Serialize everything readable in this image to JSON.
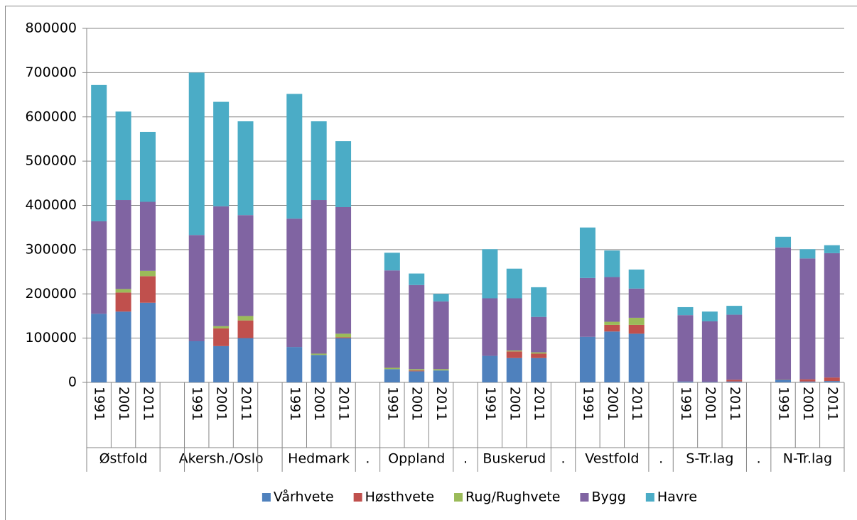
{
  "chart_data": {
    "type": "stacked_bar",
    "categories": [
      "1991",
      "2001",
      "2011",
      null,
      "1991",
      "2001",
      "2011",
      null,
      "1991",
      "2001",
      "2011",
      null,
      "1991",
      "2001",
      "2011",
      null,
      "1991",
      "2001",
      "2011",
      null,
      "1991",
      "2001",
      "2011",
      null,
      "1991",
      "2001",
      "2011",
      null,
      "1991",
      "2001",
      "2011"
    ],
    "groups": [
      "Østfold",
      null,
      "Akersh./Oslo",
      null,
      "Hedmark",
      ".",
      "Oppland",
      ".",
      "Buskerud",
      ".",
      "Vestfold",
      ".",
      "S-Tr.lag",
      ".",
      "N-Tr.lag"
    ],
    "series": [
      {
        "name": "Vårhvete",
        "color": "#4f81bd",
        "values": [
          155000,
          160000,
          180000,
          null,
          93000,
          82000,
          100000,
          null,
          80000,
          62000,
          100000,
          null,
          30000,
          25000,
          27000,
          null,
          60000,
          55000,
          55000,
          null,
          103000,
          115000,
          110000,
          null,
          2000,
          1000,
          2000,
          null,
          7000,
          2000,
          3000
        ]
      },
      {
        "name": "Høsthvete",
        "color": "#c0504d",
        "values": [
          0,
          43000,
          60000,
          null,
          0,
          40000,
          40000,
          null,
          0,
          0,
          2000,
          null,
          0,
          2000,
          0,
          null,
          0,
          15000,
          10000,
          null,
          0,
          15000,
          20000,
          null,
          0,
          0,
          4000,
          null,
          1000,
          5000,
          8000
        ]
      },
      {
        "name": "Rug/Rughvete",
        "color": "#9bbb59",
        "values": [
          0,
          8000,
          12000,
          null,
          0,
          5000,
          10000,
          null,
          0,
          3000,
          8000,
          null,
          3000,
          3000,
          3000,
          null,
          0,
          2000,
          3000,
          null,
          0,
          7000,
          16000,
          null,
          0,
          0,
          0,
          null,
          0,
          0,
          0
        ]
      },
      {
        "name": "Bygg",
        "color": "#8064a2",
        "values": [
          209000,
          201000,
          156000,
          null,
          240000,
          271000,
          228000,
          null,
          290000,
          347000,
          286000,
          null,
          220000,
          190000,
          153000,
          null,
          130000,
          118000,
          80000,
          null,
          133000,
          101000,
          66000,
          null,
          150000,
          137000,
          147000,
          null,
          297000,
          273000,
          281000
        ]
      },
      {
        "name": "Havre",
        "color": "#4bacc6",
        "values": [
          308000,
          200000,
          158000,
          null,
          367000,
          236000,
          212000,
          null,
          282000,
          178000,
          149000,
          null,
          40000,
          26000,
          17000,
          null,
          111000,
          67000,
          67000,
          null,
          114000,
          60000,
          43000,
          null,
          18000,
          22000,
          20000,
          null,
          24000,
          21000,
          18000
        ]
      }
    ],
    "ylim": [
      0,
      800000
    ],
    "yticks": [
      0,
      100000,
      200000,
      300000,
      400000,
      500000,
      600000,
      700000,
      800000
    ],
    "grid": true,
    "legend": "bottom"
  }
}
